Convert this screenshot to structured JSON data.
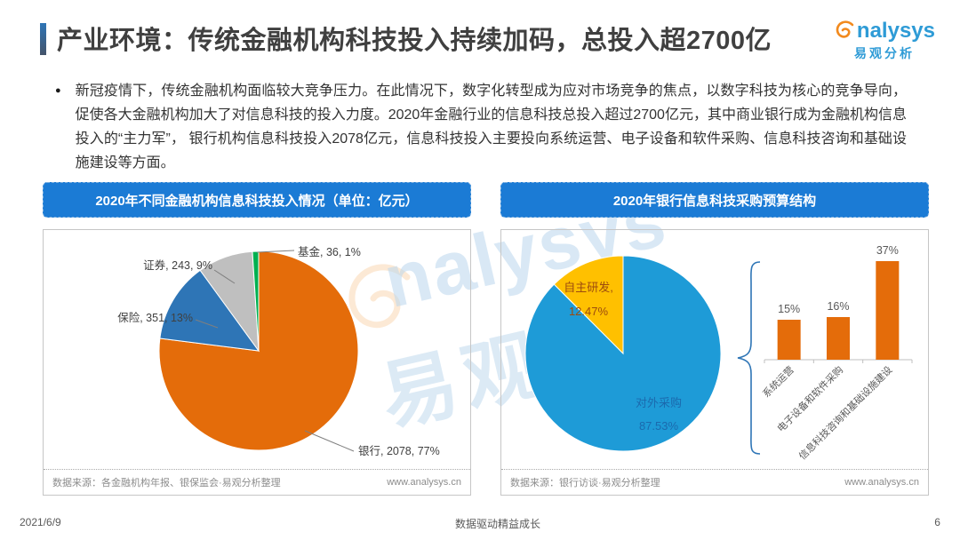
{
  "header": {
    "title": "产业环境：传统金融机构科技投入持续加码，总投入超2700亿",
    "logo": {
      "brand_rest": "nalysys",
      "brand_cn": "易观分析"
    }
  },
  "summary": "新冠疫情下，传统金融机构面临较大竞争压力。在此情况下，数字化转型成为应对市场竞争的焦点，以数字科技为核心的竞争导向，促使各大金融机构加大了对信息科技的投入力度。2020年金融行业的信息科技总投入超过2700亿元，其中商业银行成为金融机构信息投入的“主力军”， 银行机构信息科技投入2078亿元，信息科技投入主要投向系统运营、电子设备和软件采购、信息科技咨询和基础设施建设等方面。",
  "panels": [
    {
      "header": "2020年不同金融机构信息科技投入情况（单位：亿元）",
      "source": "数据来源：各金融机构年报、银保监会·易观分析整理",
      "site": "www.analysys.cn"
    },
    {
      "header": "2020年银行信息科技采购预算结构",
      "source": "数据来源：银行访谈·易观分析整理",
      "site": "www.analysys.cn"
    }
  ],
  "watermark": {
    "latin": "nalysys",
    "cn": "易观"
  },
  "footer": {
    "date": "2021/6/9",
    "slogan": "数据驱动精益成长",
    "page_number": "6"
  },
  "chart_data": [
    {
      "type": "pie",
      "title": "2020年不同金融机构信息科技投入情况（单位：亿元）",
      "unit": "亿元",
      "legend_position": "none",
      "label_format": "label, value, pct%",
      "slices": [
        {
          "label": "银行",
          "value": 2078,
          "pct": 77,
          "color": "#E46C0A"
        },
        {
          "label": "保险",
          "value": 351,
          "pct": 13,
          "color": "#2E75B6"
        },
        {
          "label": "证券",
          "value": 243,
          "pct": 9,
          "color": "#BFBFBF"
        },
        {
          "label": "基金",
          "value": 36,
          "pct": 1,
          "color": "#00B050"
        }
      ]
    },
    {
      "type": "pie+bar",
      "title": "2020年银行信息科技采购预算结构",
      "pie": {
        "slices": [
          {
            "label": "对外采购",
            "pct": 87.53,
            "color": "#1E9BD7",
            "label_lines": [
              "对外采购",
              "87.53%"
            ],
            "label_color": "#1B6AAE"
          },
          {
            "label": "自主研发",
            "pct": 12.47,
            "color": "#FFC000",
            "label_lines": [
              "自主研发,",
              "12.47%"
            ],
            "label_color": "#9C4B0F"
          }
        ]
      },
      "bar": {
        "categories": [
          "系统运营",
          "电子设备和软件采购",
          "信息科技咨询和基础设施建设"
        ],
        "values": [
          15,
          16,
          37
        ],
        "unit": "%",
        "ylim": [
          0,
          40
        ],
        "color": "#E46C0A",
        "brace_color": "#2E75B6"
      }
    }
  ]
}
